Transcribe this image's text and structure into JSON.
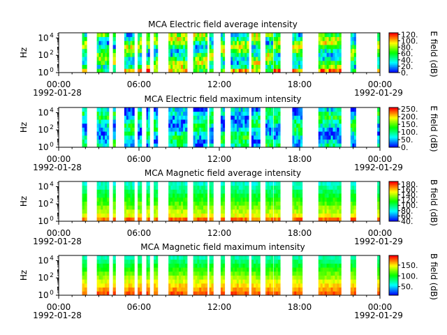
{
  "x_tick_labels": [
    "00:00",
    "06:00",
    "12:00",
    "18:00",
    "00:00"
  ],
  "x_date_labels": [
    "1992-01-28",
    "",
    "",
    "",
    "1992-01-29"
  ],
  "y_label": "Hz",
  "y_ticks": [
    {
      "base": "10",
      "exp": "0"
    },
    {
      "base": "10",
      "exp": "2"
    },
    {
      "base": "10",
      "exp": "4"
    }
  ],
  "chart_data": [
    {
      "type": "heatmap",
      "title": "MCA  Electric field average intensity",
      "ylabel": "Hz",
      "yscale": "log",
      "ylim_exp": [
        0,
        4.6
      ],
      "x_range": [
        "1992-01-28 00:00",
        "1992-01-29 00:00"
      ],
      "colorbar_label": "E field (dB)",
      "colorbar_ticks": [
        "0.",
        "20.",
        "40.",
        "60.",
        "80.",
        "100.",
        "120."
      ],
      "colorbar_range": [
        0,
        125
      ],
      "seed": 11,
      "profile": "ea"
    },
    {
      "type": "heatmap",
      "title": "MCA  Electric field maximum intensity",
      "ylabel": "Hz",
      "yscale": "log",
      "ylim_exp": [
        0,
        4.6
      ],
      "x_range": [
        "1992-01-28 00:00",
        "1992-01-29 00:00"
      ],
      "colorbar_label": "E field (dB)",
      "colorbar_ticks": [
        "0.",
        "50.",
        "100.",
        "150.",
        "200.",
        "250."
      ],
      "colorbar_range": [
        0,
        260
      ],
      "seed": 23,
      "profile": "em"
    },
    {
      "type": "heatmap",
      "title": "MCA  Magnetic field average intensity",
      "ylabel": "Hz",
      "yscale": "log",
      "ylim_exp": [
        0,
        4.6
      ],
      "x_range": [
        "1992-01-28 00:00",
        "1992-01-29 00:00"
      ],
      "colorbar_label": "B field (dB)",
      "colorbar_ticks": [
        "40.",
        "60.",
        "80.",
        "100.",
        "120.",
        "140.",
        "160.",
        "180."
      ],
      "colorbar_range": [
        40,
        190
      ],
      "seed": 37,
      "profile": "ba"
    },
    {
      "type": "heatmap",
      "title": "MCA  Magnetic field maximum intensity",
      "ylabel": "Hz",
      "yscale": "log",
      "ylim_exp": [
        0,
        4.6
      ],
      "x_range": [
        "1992-01-28 00:00",
        "1992-01-29 00:00"
      ],
      "colorbar_label": "B field (dB)",
      "colorbar_ticks": [
        "50.",
        "100.",
        "150."
      ],
      "colorbar_range": [
        10,
        195
      ],
      "seed": 53,
      "profile": "bm"
    }
  ],
  "data_segments_hours": [
    [
      1.75,
      2.1
    ],
    [
      2.85,
      3.75
    ],
    [
      4.05,
      4.25
    ],
    [
      4.9,
      5.65
    ],
    [
      5.9,
      6.2
    ],
    [
      6.55,
      6.8
    ],
    [
      7.1,
      7.4
    ],
    [
      8.2,
      9.6
    ],
    [
      10.05,
      11.1
    ],
    [
      11.25,
      11.55
    ],
    [
      12.1,
      12.4
    ],
    [
      12.85,
      14.2
    ],
    [
      14.4,
      15.05
    ],
    [
      15.45,
      16.0
    ],
    [
      16.05,
      16.55
    ],
    [
      17.45,
      18.2
    ],
    [
      19.4,
      21.1
    ],
    [
      21.8,
      22.2
    ],
    [
      23.8,
      24.0
    ]
  ]
}
